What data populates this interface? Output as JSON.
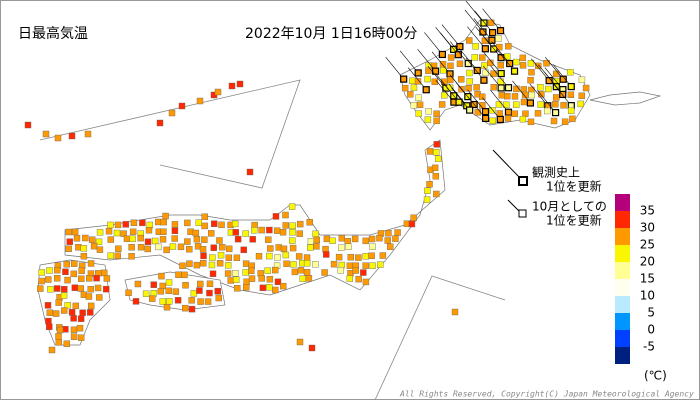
{
  "title": "日最高気温",
  "timestamp": "2022年10月 1日16時00分",
  "legend": {
    "all_time_record": [
      "観測史上",
      "1位を更新"
    ],
    "monthly_record": [
      "10月としての",
      "1位を更新"
    ]
  },
  "color_scale": {
    "labels": [
      35,
      30,
      25,
      20,
      15,
      10,
      5,
      0,
      -5
    ],
    "unit": "(℃)",
    "colors": [
      "#b4007a",
      "#ff2800",
      "#ff9900",
      "#faf500",
      "#ffff96",
      "#fffff0",
      "#b9ebff",
      "#0096ff",
      "#0041ff",
      "#002080"
    ]
  },
  "copyright": "All Rights Reserved, Copyright(C) Japan Meteorological Agency"
}
